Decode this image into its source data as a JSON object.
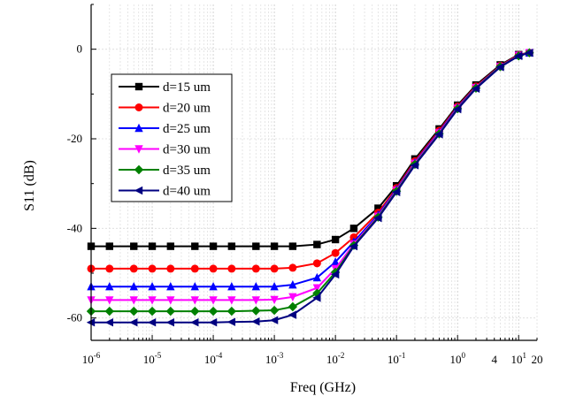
{
  "chart_data": {
    "type": "line",
    "title": "",
    "xlabel": "Freq (GHz)",
    "ylabel": "S11 (dB)",
    "xscale": "log",
    "xlim": [
      1e-06,
      20
    ],
    "ylim": [
      -65,
      10
    ],
    "grid": true,
    "legend_position": "top-left",
    "x_ticks": [
      {
        "value": 1e-06,
        "base": "10",
        "exp": "-6"
      },
      {
        "value": 1e-05,
        "base": "10",
        "exp": "-5"
      },
      {
        "value": 0.0001,
        "base": "10",
        "exp": "-4"
      },
      {
        "value": 0.001,
        "base": "10",
        "exp": "-3"
      },
      {
        "value": 0.01,
        "base": "10",
        "exp": "-2"
      },
      {
        "value": 0.1,
        "base": "10",
        "exp": "-1"
      },
      {
        "value": 1,
        "base": "10",
        "exp": "0"
      },
      {
        "value": 4,
        "base": "4",
        "exp": ""
      },
      {
        "value": 10,
        "base": "10",
        "exp": "1"
      },
      {
        "value": 20,
        "base": "20",
        "exp": ""
      }
    ],
    "y_ticks": [
      {
        "value": 0,
        "label": "0"
      },
      {
        "value": -20,
        "label": "-20"
      },
      {
        "value": -40,
        "label": "-40"
      },
      {
        "value": -60,
        "label": "-60"
      }
    ],
    "x": [
      1e-06,
      2e-06,
      5e-06,
      1e-05,
      2e-05,
      5e-05,
      0.0001,
      0.0002,
      0.0005,
      0.001,
      0.002,
      0.005,
      0.01,
      0.02,
      0.05,
      0.1,
      0.2,
      0.5,
      1,
      2,
      5,
      10,
      15
    ],
    "series": [
      {
        "name": "d=15 um",
        "color": "#000000",
        "marker": "square",
        "values": [
          -44,
          -44,
          -44,
          -44,
          -44,
          -44,
          -44,
          -44,
          -44,
          -44,
          -44,
          -43.6,
          -42.5,
          -40,
          -35.5,
          -30.5,
          -24.5,
          -17.8,
          -12.5,
          -8,
          -3.5,
          -1.2,
          -0.8
        ]
      },
      {
        "name": "d=20 um",
        "color": "#ff0000",
        "marker": "circle",
        "values": [
          -49,
          -49,
          -49,
          -49,
          -49,
          -49,
          -49,
          -49,
          -49,
          -49,
          -48.8,
          -47.8,
          -45.5,
          -42,
          -36.5,
          -31,
          -25,
          -18.2,
          -12.8,
          -8.3,
          -3.7,
          -1.3,
          -0.8
        ]
      },
      {
        "name": "d=25 um",
        "color": "#0000ff",
        "marker": "triangle-up",
        "values": [
          -53,
          -53,
          -53,
          -53,
          -53,
          -53,
          -53,
          -53,
          -53,
          -53,
          -52.6,
          -51,
          -47.5,
          -43,
          -37,
          -31.3,
          -25.3,
          -18.5,
          -13,
          -8.5,
          -3.8,
          -1.4,
          -0.8
        ]
      },
      {
        "name": "d=30 um",
        "color": "#ff00ff",
        "marker": "triangle-down",
        "values": [
          -56,
          -56,
          -56,
          -56,
          -56,
          -56,
          -56,
          -56,
          -56,
          -55.9,
          -55.3,
          -53.3,
          -49,
          -43.5,
          -37.3,
          -31.5,
          -25.5,
          -18.7,
          -13.2,
          -8.6,
          -3.9,
          -1.4,
          -0.8
        ]
      },
      {
        "name": "d=35 um",
        "color": "#008000",
        "marker": "diamond",
        "values": [
          -58.5,
          -58.5,
          -58.5,
          -58.5,
          -58.5,
          -58.5,
          -58.5,
          -58.5,
          -58.4,
          -58.3,
          -57.5,
          -54.5,
          -49.8,
          -43.8,
          -37.5,
          -31.7,
          -25.7,
          -18.9,
          -13.3,
          -8.7,
          -3.9,
          -1.5,
          -0.8
        ]
      },
      {
        "name": "d=40 um",
        "color": "#000080",
        "marker": "triangle-left",
        "values": [
          -61,
          -61,
          -61,
          -61,
          -61,
          -61,
          -61,
          -60.9,
          -60.8,
          -60.5,
          -59.3,
          -55.5,
          -50.3,
          -44,
          -37.7,
          -31.9,
          -25.9,
          -19,
          -13.4,
          -8.8,
          -4,
          -1.5,
          -0.8
        ]
      }
    ]
  }
}
